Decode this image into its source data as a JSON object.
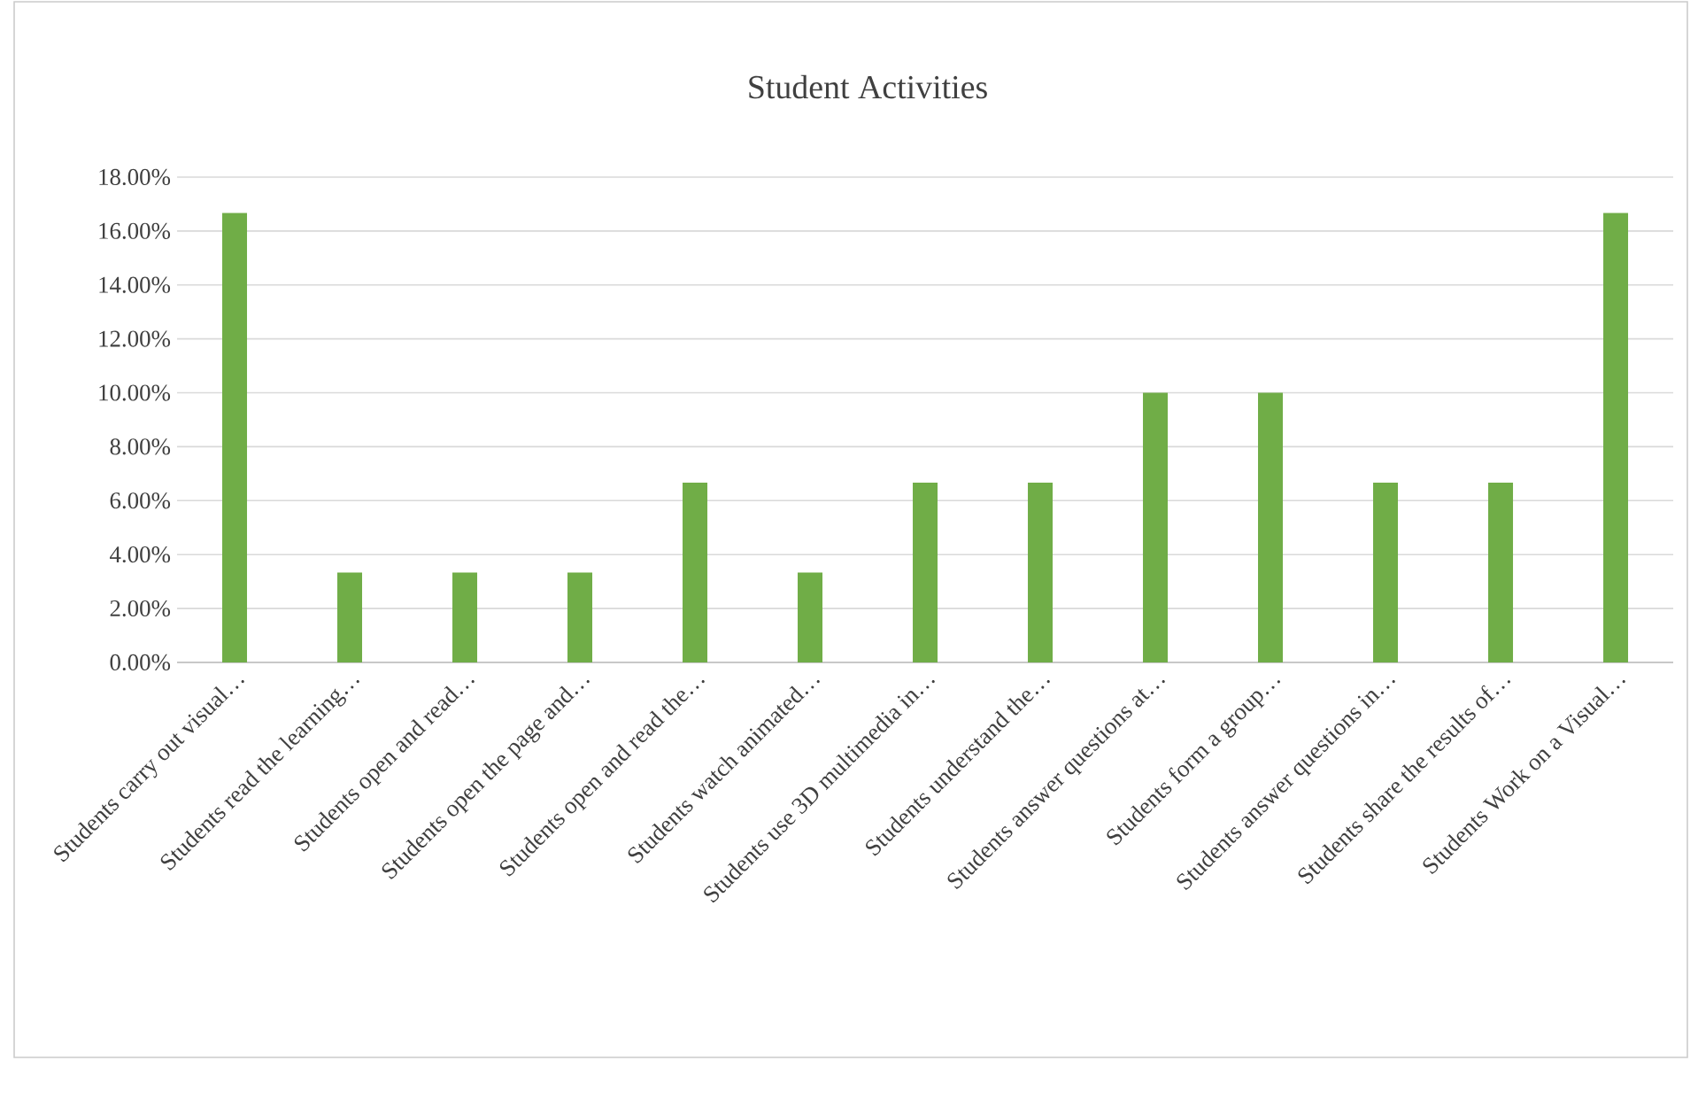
{
  "chart_data": {
    "type": "bar",
    "title": "Student Activities",
    "categories": [
      "Students carry out visual…",
      "Students read the learning…",
      "Students open and read…",
      "Students open the page and…",
      "Students open and read the…",
      "Students watch animated…",
      "Students use 3D multimedia in…",
      "Students understand the…",
      "Students answer questions at…",
      "Students form a group…",
      "Students answer questions in…",
      "Students share the results of…",
      "Students Work on a Visual…"
    ],
    "values": [
      16.67,
      3.33,
      3.33,
      3.33,
      6.67,
      3.33,
      6.67,
      6.67,
      10.0,
      10.0,
      6.67,
      6.67,
      16.67
    ],
    "color": "#70ad47",
    "ylim": [
      0,
      18
    ],
    "yticks": [
      {
        "value": 0,
        "label": "0.00%"
      },
      {
        "value": 2,
        "label": "2.00%"
      },
      {
        "value": 4,
        "label": "4.00%"
      },
      {
        "value": 6,
        "label": "6.00%"
      },
      {
        "value": 8,
        "label": "8.00%"
      },
      {
        "value": 10,
        "label": "10.00%"
      },
      {
        "value": 12,
        "label": "12.00%"
      },
      {
        "value": 14,
        "label": "14.00%"
      },
      {
        "value": 16,
        "label": "16.00%"
      },
      {
        "value": 18,
        "label": "18.00%"
      }
    ],
    "grid": "y"
  }
}
